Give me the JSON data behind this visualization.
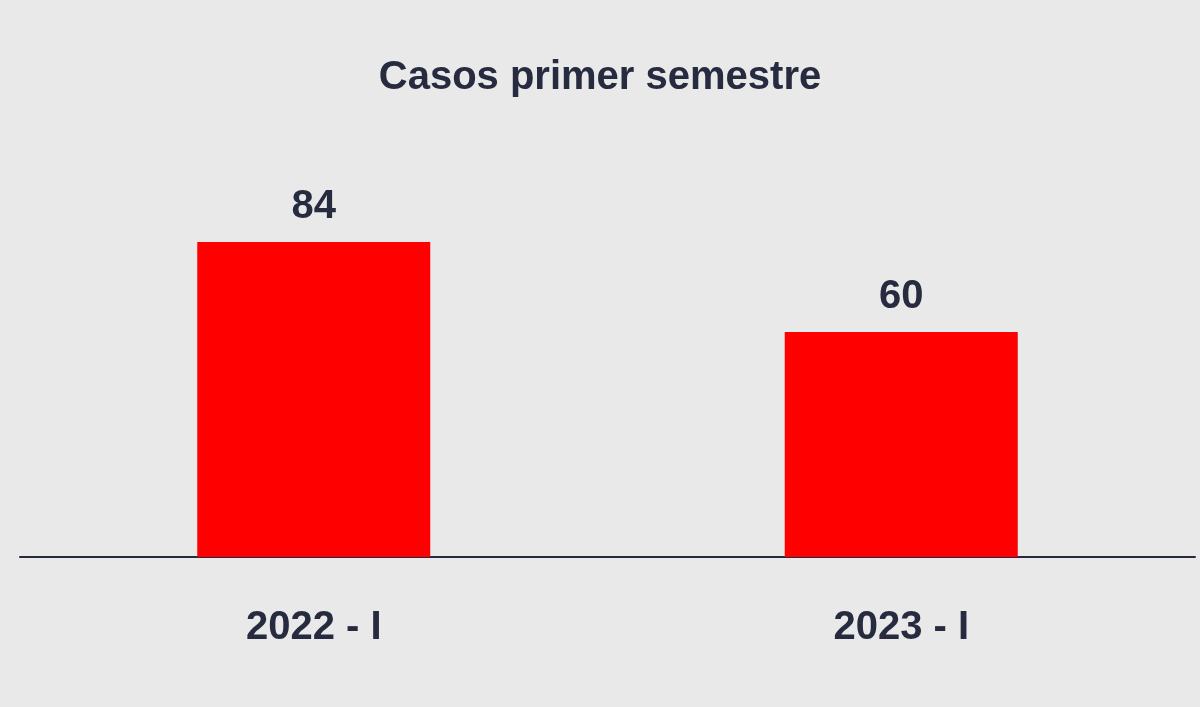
{
  "chart_data": {
    "type": "bar",
    "title": "Casos primer semestre",
    "categories": [
      "2022 - I",
      "2023 - I"
    ],
    "values": [
      84,
      60
    ],
    "color": "#fe0000",
    "data_labels": true
  }
}
